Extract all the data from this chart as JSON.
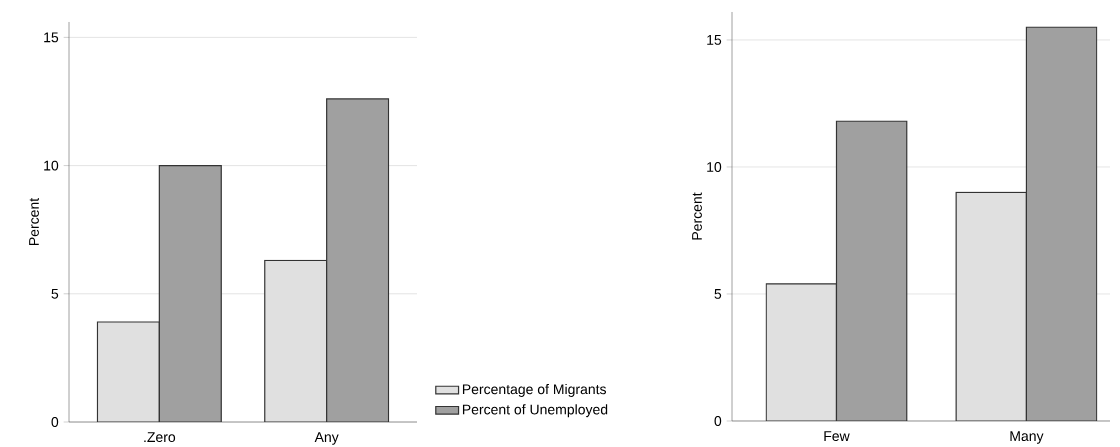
{
  "chart_data": [
    {
      "type": "bar",
      "ylabel": "Percent",
      "categories": [
        ".Zero",
        "Any"
      ],
      "series": [
        {
          "name": "Percentage of Migrants",
          "color": "#e0e0e0",
          "values": [
            3.9,
            6.3
          ]
        },
        {
          "name": "Percent of Unemployed",
          "color": "#a0a0a0",
          "values": [
            10.0,
            12.6
          ]
        }
      ],
      "ylim": [
        0,
        15.6
      ],
      "yticks": [
        0,
        5,
        10,
        15
      ],
      "grid": "y",
      "legend": "bottom right"
    },
    {
      "type": "bar",
      "ylabel": "Percent",
      "categories": [
        "Few",
        "Many"
      ],
      "series": [
        {
          "color": "#e0e0e0",
          "values": [
            5.4,
            9.0
          ]
        },
        {
          "color": "#a0a0a0",
          "values": [
            11.8,
            15.5
          ]
        }
      ],
      "ylim": [
        0,
        16.1
      ],
      "yticks": [
        0,
        5,
        10,
        15
      ],
      "grid": "y"
    }
  ]
}
